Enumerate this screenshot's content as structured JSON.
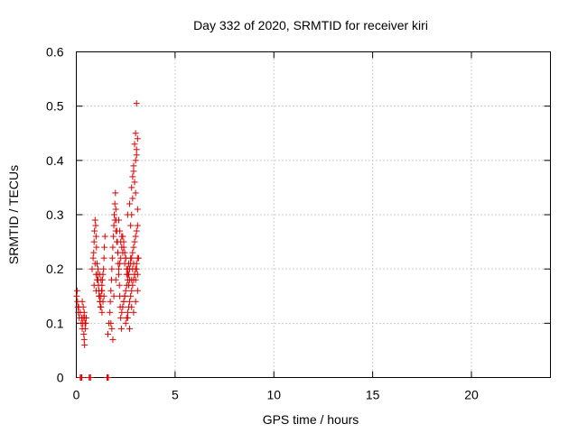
{
  "chart_data": {
    "type": "scatter",
    "title": "Day 332 of 2020, SRMTID for receiver kiri",
    "xlabel": "GPS time / hours",
    "ylabel": "SRMTID / TECUs",
    "xlim": [
      0,
      24
    ],
    "ylim": [
      0,
      0.6
    ],
    "x_ticks": [
      0,
      5,
      10,
      15,
      20
    ],
    "y_ticks": [
      0,
      0.1,
      0.2,
      0.3,
      0.4,
      0.5,
      0.6
    ],
    "x_tick_labels": [
      "0",
      "5",
      "10",
      "15",
      "20"
    ],
    "y_tick_labels": [
      "0",
      "0.1",
      "0.2",
      "0.3",
      "0.4",
      "0.5",
      "0.6"
    ],
    "grid": true,
    "marker": "plus",
    "color": "#dd0000",
    "series": [
      {
        "name": "SRMTID",
        "x": [
          0.02,
          0.04,
          0.06,
          0.08,
          0.1,
          0.12,
          0.15,
          0.2,
          0.25,
          0.28,
          0.3,
          0.33,
          0.35,
          0.38,
          0.4,
          0.42,
          0.45,
          0.48,
          0.5,
          0.3,
          0.35,
          0.4,
          0.42,
          0.44,
          0.8,
          0.85,
          0.88,
          0.9,
          0.92,
          0.95,
          0.98,
          1.0,
          1.02,
          1.05,
          1.08,
          1.1,
          1.12,
          1.15,
          1.18,
          1.2,
          1.22,
          1.25,
          1.28,
          1.3,
          1.32,
          1.35,
          1.38,
          1.4,
          1.42,
          1.45,
          0.95,
          1.0,
          1.05,
          0.9,
          1.1,
          1.0,
          1.15,
          1.2,
          1.25,
          1.3,
          1.35,
          1.4,
          1.3,
          1.25,
          1.18,
          1.6,
          1.65,
          1.7,
          1.72,
          1.75,
          1.78,
          1.8,
          1.82,
          1.85,
          1.88,
          1.9,
          1.92,
          1.95,
          1.98,
          2.0,
          2.02,
          2.05,
          2.08,
          2.1,
          2.12,
          2.15,
          2.18,
          2.2,
          2.22,
          2.25,
          2.28,
          1.95,
          2.0,
          2.05,
          2.1,
          2.15,
          2.0,
          1.9,
          2.2,
          2.25,
          2.3,
          2.35,
          2.4,
          2.45,
          2.5,
          2.55,
          2.6,
          2.65,
          2.7,
          2.75,
          2.8,
          2.85,
          2.9,
          2.95,
          3.0,
          3.05,
          3.1,
          3.15,
          2.3,
          2.35,
          2.4,
          2.45,
          2.5,
          2.55,
          2.6,
          2.65,
          2.7,
          2.75,
          2.8,
          2.85,
          2.9,
          2.95,
          3.0,
          3.05,
          3.1,
          2.5,
          2.55,
          2.6,
          2.65,
          2.7,
          2.75,
          2.8,
          2.85,
          2.9,
          2.95,
          3.0,
          3.05,
          3.1,
          2.4,
          2.45,
          2.6,
          2.7,
          2.8,
          2.9,
          3.0,
          3.1,
          2.6,
          2.7,
          2.8,
          2.85,
          2.9,
          2.95,
          3.0,
          3.05,
          3.1,
          3.0,
          2.95,
          3.05,
          2.9,
          2.85,
          3.0,
          3.1,
          2.8,
          2.75,
          2.3,
          2.4,
          2.5,
          2.6,
          2.7,
          2.65,
          2.55,
          2.45,
          2.35,
          2.25,
          2.2,
          2.15,
          1.85,
          1.8,
          1.75,
          0.2,
          0.25,
          0.28,
          0.65,
          0.7,
          0.72,
          1.55,
          1.6,
          1.62
        ],
        "y": [
          0.15,
          0.16,
          0.14,
          0.13,
          0.12,
          0.13,
          0.11,
          0.12,
          0.1,
          0.11,
          0.09,
          0.1,
          0.11,
          0.08,
          0.07,
          0.06,
          0.09,
          0.1,
          0.11,
          0.14,
          0.13,
          0.12,
          0.11,
          0.1,
          0.2,
          0.22,
          0.23,
          0.25,
          0.27,
          0.29,
          0.28,
          0.26,
          0.24,
          0.21,
          0.19,
          0.18,
          0.17,
          0.16,
          0.15,
          0.14,
          0.13,
          0.15,
          0.16,
          0.17,
          0.18,
          0.19,
          0.2,
          0.22,
          0.24,
          0.26,
          0.21,
          0.19,
          0.18,
          0.17,
          0.2,
          0.16,
          0.15,
          0.14,
          0.13,
          0.12,
          0.14,
          0.15,
          0.16,
          0.18,
          0.19,
          0.08,
          0.1,
          0.12,
          0.14,
          0.16,
          0.18,
          0.2,
          0.22,
          0.24,
          0.26,
          0.28,
          0.3,
          0.32,
          0.34,
          0.31,
          0.29,
          0.27,
          0.25,
          0.23,
          0.21,
          0.19,
          0.17,
          0.15,
          0.13,
          0.11,
          0.09,
          0.29,
          0.27,
          0.25,
          0.23,
          0.2,
          0.18,
          0.15,
          0.21,
          0.22,
          0.24,
          0.26,
          0.25,
          0.23,
          0.22,
          0.2,
          0.19,
          0.21,
          0.2,
          0.22,
          0.18,
          0.2,
          0.21,
          0.19,
          0.18,
          0.2,
          0.19,
          0.22,
          0.12,
          0.13,
          0.14,
          0.15,
          0.16,
          0.17,
          0.18,
          0.19,
          0.2,
          0.21,
          0.22,
          0.23,
          0.24,
          0.25,
          0.26,
          0.27,
          0.28,
          0.1,
          0.11,
          0.12,
          0.13,
          0.14,
          0.15,
          0.16,
          0.17,
          0.18,
          0.19,
          0.2,
          0.21,
          0.22,
          0.14,
          0.15,
          0.11,
          0.09,
          0.13,
          0.12,
          0.14,
          0.16,
          0.3,
          0.32,
          0.35,
          0.33,
          0.38,
          0.36,
          0.4,
          0.42,
          0.44,
          0.45,
          0.43,
          0.41,
          0.39,
          0.37,
          0.34,
          0.31,
          0.3,
          0.28,
          0.26,
          0.24,
          0.22,
          0.2,
          0.18,
          0.17,
          0.19,
          0.21,
          0.23,
          0.25,
          0.27,
          0.29,
          0.07,
          0.09,
          0.1,
          0.0,
          0.0,
          0.0,
          0.0,
          0.0,
          0.0,
          0.0,
          0.0,
          0.0
        ]
      }
    ],
    "outliers": [
      {
        "x": 3.05,
        "y": 0.505
      }
    ]
  }
}
